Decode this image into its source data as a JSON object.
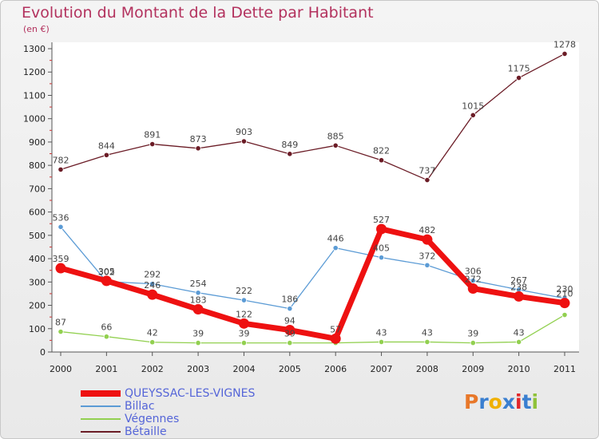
{
  "chart_data": {
    "type": "line",
    "title": "Evolution du Montant de la Dette par Habitant",
    "subtitle": "(en €)",
    "xlabel": "",
    "ylabel": "",
    "categories": [
      "2000",
      "2001",
      "2002",
      "2003",
      "2004",
      "2005",
      "2006",
      "2007",
      "2008",
      "2009",
      "2010",
      "2011"
    ],
    "ylim": [
      0,
      1300
    ],
    "yticks": [
      0,
      100,
      200,
      300,
      400,
      500,
      600,
      700,
      800,
      900,
      1000,
      1100,
      1200,
      1300
    ],
    "series": [
      {
        "name": "Bétaille",
        "color": "#6b1c26",
        "values": [
          782,
          844,
          891,
          873,
          903,
          849,
          885,
          822,
          737,
          1015,
          1175,
          1278
        ]
      },
      {
        "name": "Billac",
        "color": "#5b9bd5",
        "values": [
          536,
          302,
          292,
          254,
          222,
          186,
          446,
          405,
          372,
          306,
          267,
          230
        ]
      },
      {
        "name": "Végennes",
        "color": "#92d050",
        "values": [
          87,
          66,
          42,
          39,
          39,
          39,
          39,
          43,
          43,
          39,
          43,
          159
        ]
      },
      {
        "name": "QUEYSSAC-LES-VIGNES",
        "color": "#ee1111",
        "values": [
          359,
          305,
          246,
          183,
          122,
          94,
          57,
          527,
          482,
          272,
          238,
          210
        ]
      }
    ],
    "data_labels": {
      "Bétaille": [
        "782",
        "844",
        "891",
        "873",
        "903",
        "849",
        "885",
        "822",
        "737",
        "1015",
        "1175",
        "1278"
      ],
      "Billac": [
        "536",
        "302",
        "292",
        "254",
        "222",
        "186",
        "446",
        "405",
        "372",
        "306",
        "267",
        "230"
      ],
      "Végennes": [
        "87",
        "66",
        "42",
        "39",
        "39",
        "39",
        "",
        "43",
        "43",
        "39",
        "43",
        ""
      ],
      "QUEYSSAC-LES-VIGNES": [
        "359",
        "305",
        "246",
        "183",
        "122",
        "94",
        "57",
        "527",
        "482",
        "272",
        "238",
        "210"
      ]
    },
    "legend": [
      "QUEYSSAC-LES-VIGNES",
      "Billac",
      "Végennes",
      "Bétaille"
    ],
    "legend_position": "bottom-left"
  },
  "brand": {
    "letters": [
      "P",
      "r",
      "o",
      "x",
      "i",
      "t",
      "i"
    ],
    "colors": [
      "#e8782a",
      "#3a7fd0",
      "#f0b000",
      "#3a7fd0",
      "#e2262a",
      "#3a7fd0",
      "#8fc23a"
    ]
  }
}
